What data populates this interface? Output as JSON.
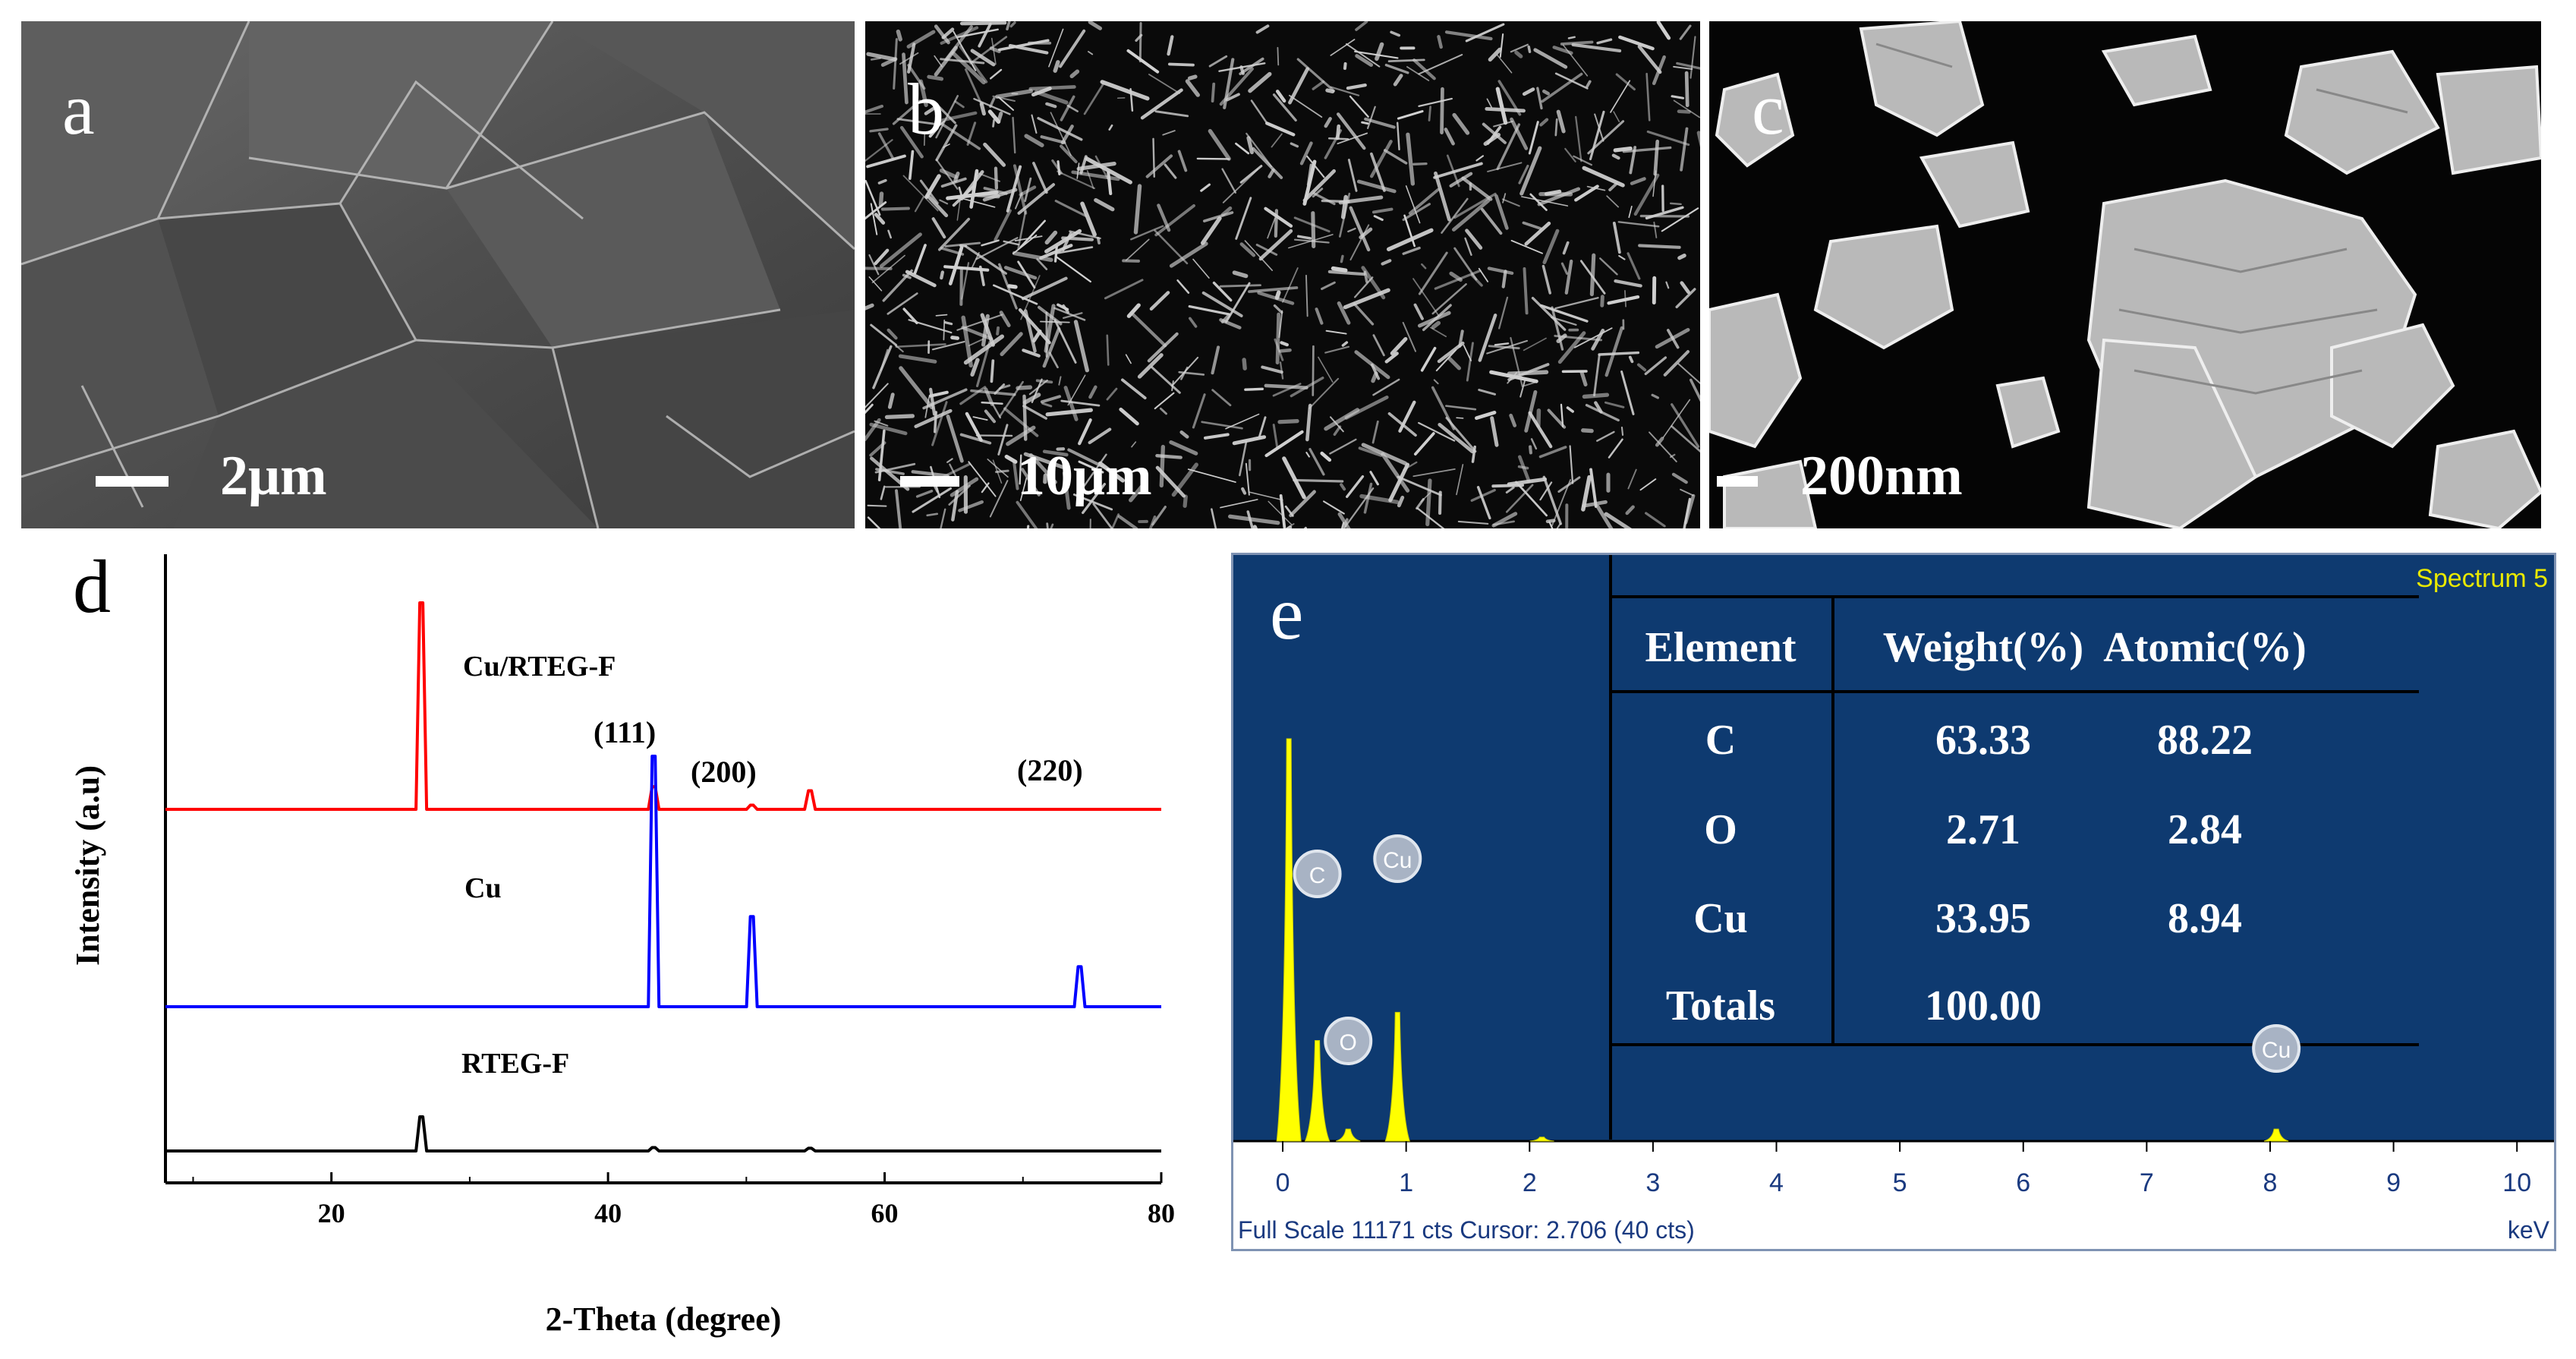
{
  "panels": {
    "a": {
      "label": "a",
      "scale": "2μm"
    },
    "b": {
      "label": "b",
      "scale": "10μm"
    },
    "c": {
      "label": "c",
      "scale": "200nm"
    },
    "d": {
      "label": "d"
    },
    "e": {
      "label": "e"
    }
  },
  "chart_data": [
    {
      "type": "line",
      "xlabel": "2-Theta (degree)",
      "ylabel": "Intensity (a.u)",
      "xlim": [
        8,
        80
      ],
      "xticks": [
        20,
        40,
        60,
        80
      ],
      "grid": false,
      "series": [
        {
          "name": "Cu/RTEG-F",
          "color": "#ff0000",
          "peaks": [
            [
              26.5,
              100
            ],
            [
              43.3,
              11
            ],
            [
              50.4,
              2
            ],
            [
              54.6,
              9
            ]
          ]
        },
        {
          "name": "Cu",
          "color": "#0000ff",
          "peaks": [
            [
              43.3,
              100
            ],
            [
              50.4,
              36
            ],
            [
              74.1,
              16
            ]
          ]
        },
        {
          "name": "RTEG-F",
          "color": "#000000",
          "peaks": [
            [
              26.5,
              100
            ],
            [
              43.3,
              10
            ],
            [
              54.6,
              8
            ]
          ]
        }
      ],
      "annotations": [
        "(111)",
        "(200)",
        "(220)"
      ]
    },
    {
      "type": "bar",
      "title": "Spectrum 5",
      "xlabel": "keV",
      "xlim": [
        -0.4,
        10.3
      ],
      "xticks": [
        0,
        1,
        2,
        3,
        4,
        5,
        6,
        7,
        8,
        9,
        10
      ],
      "peaks": [
        [
          0.05,
          100
        ],
        [
          0.28,
          25
        ],
        [
          0.53,
          3
        ],
        [
          0.93,
          32
        ],
        [
          2.1,
          1
        ],
        [
          8.05,
          3
        ]
      ],
      "peak_labels": [
        {
          "text": "C",
          "x": 0.28
        },
        {
          "text": "Cu",
          "x": 0.93
        },
        {
          "text": "O",
          "x": 0.53
        },
        {
          "text": "Cu",
          "x": 8.05
        }
      ],
      "footer": "Full Scale 11171 cts Cursor: 2.706  (40 cts)"
    }
  ],
  "edx_table": {
    "headers": [
      "Element",
      "Weight(%)",
      "Atomic(%)"
    ],
    "rows": [
      [
        "C",
        "63.33",
        "88.22"
      ],
      [
        "O",
        "2.71",
        "2.84"
      ],
      [
        "Cu",
        "33.95",
        "8.94"
      ],
      [
        "Totals",
        "100.00",
        ""
      ]
    ]
  }
}
